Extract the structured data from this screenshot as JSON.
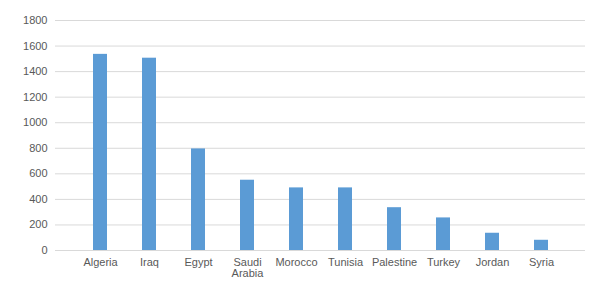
{
  "chart_data": {
    "type": "bar",
    "categories": [
      "Algeria",
      "Iraq",
      "Egypt",
      "Saudi Arabia",
      "Morocco",
      "Tunisia",
      "Palestine",
      "Turkey",
      "Jordan",
      "Syria"
    ],
    "values": [
      1535,
      1505,
      795,
      550,
      490,
      490,
      335,
      255,
      135,
      80
    ],
    "color": "#5b9bd5",
    "ylim": [
      0,
      1800
    ],
    "yticks": [
      0,
      200,
      400,
      600,
      800,
      1000,
      1200,
      1400,
      1600,
      1800
    ],
    "grid": true
  }
}
